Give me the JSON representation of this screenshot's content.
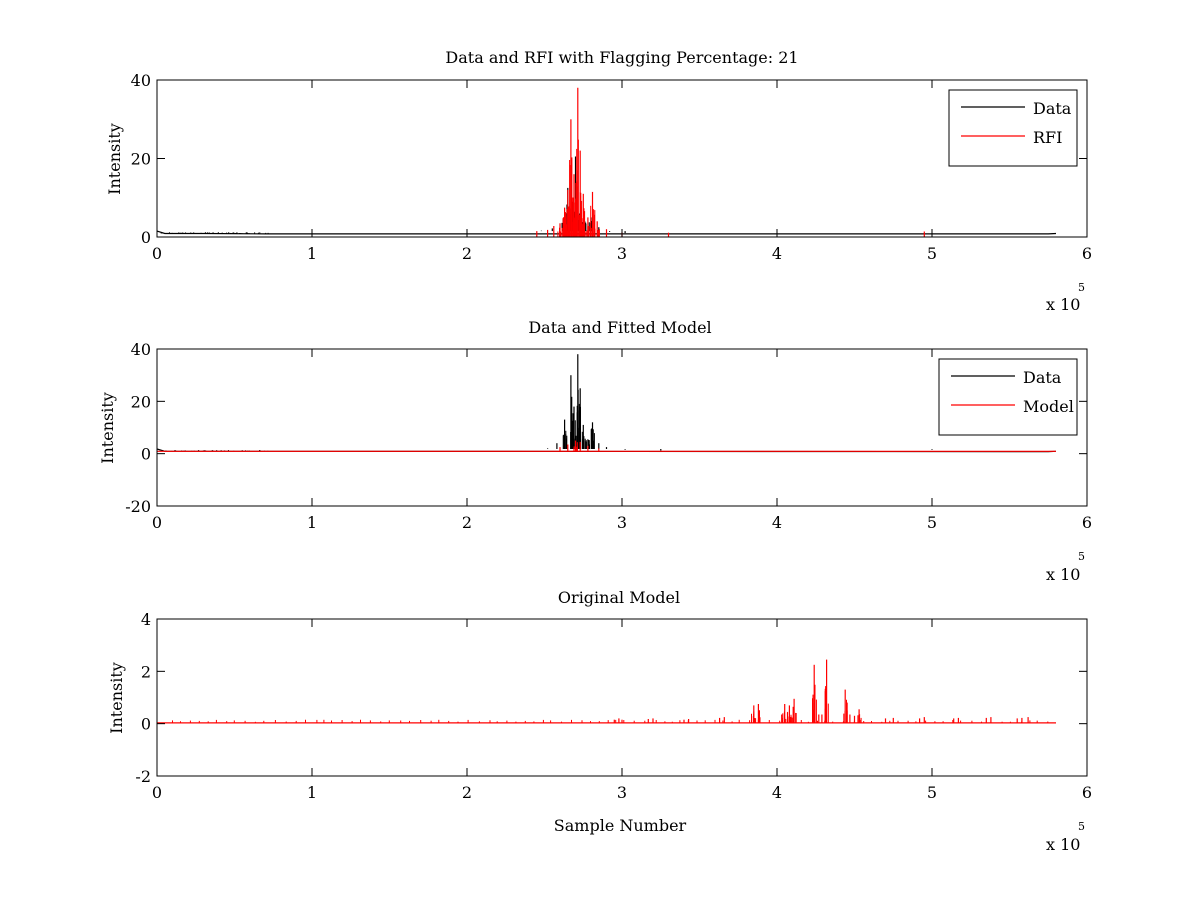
{
  "chart_data": [
    {
      "type": "line",
      "title": "Data and RFI with Flagging Percentage: 21",
      "xlabel": "",
      "ylabel": "Intensity",
      "xlim": [
        0,
        6
      ],
      "ylim": [
        0,
        40
      ],
      "x_multiplier": "x 10",
      "x_multiplier_exp": "5",
      "xticks": [
        "0",
        "1",
        "2",
        "3",
        "4",
        "5",
        "6"
      ],
      "yticks": [
        "0",
        "20",
        "40"
      ],
      "ytick_values": [
        0,
        20,
        40
      ],
      "legend": {
        "position": "top-right",
        "entries": [
          "Data",
          "RFI"
        ]
      },
      "series": [
        {
          "name": "Data",
          "color": "#000000",
          "baseline": [
            [
              0,
              1.5
            ],
            [
              0.05,
              0.9
            ],
            [
              0.3,
              0.9
            ],
            [
              0.7,
              0.8
            ],
            [
              2.5,
              0.8
            ],
            [
              5.75,
              0.8
            ],
            [
              5.8,
              0.9
            ]
          ],
          "spikes": [
            [
              2.48,
              1.6
            ],
            [
              2.55,
              2.2
            ],
            [
              2.62,
              4.5
            ],
            [
              2.65,
              12.5
            ],
            [
              2.68,
              9.0
            ],
            [
              2.7,
              20.5
            ],
            [
              2.73,
              6.5
            ],
            [
              2.76,
              4.0
            ],
            [
              2.8,
              5.0
            ],
            [
              2.85,
              2.5
            ],
            [
              2.92,
              1.3
            ],
            [
              3.02,
              1.0
            ]
          ]
        },
        {
          "name": "RFI",
          "color": "#ff0000",
          "spikes": [
            [
              2.45,
              1.5
            ],
            [
              2.52,
              1.8
            ],
            [
              2.56,
              2.8
            ],
            [
              2.6,
              3.5
            ],
            [
              2.63,
              7.5
            ],
            [
              2.65,
              12.0
            ],
            [
              2.67,
              30.0
            ],
            [
              2.69,
              16.0
            ],
            [
              2.715,
              38.0
            ],
            [
              2.73,
              22.0
            ],
            [
              2.75,
              11.0
            ],
            [
              2.78,
              5.0
            ],
            [
              2.81,
              11.5
            ],
            [
              2.84,
              4.0
            ],
            [
              2.9,
              2.0
            ],
            [
              3.0,
              1.2
            ],
            [
              3.3,
              1.1
            ],
            [
              4.95,
              1.4
            ]
          ]
        }
      ]
    },
    {
      "type": "line",
      "title": "Data and Fitted Model",
      "xlabel": "",
      "ylabel": "Intensity",
      "xlim": [
        0,
        6
      ],
      "ylim": [
        -20,
        40
      ],
      "x_multiplier": "x 10",
      "x_multiplier_exp": "5",
      "xticks": [
        "0",
        "1",
        "2",
        "3",
        "4",
        "5",
        "6"
      ],
      "yticks": [
        "-20",
        "0",
        "20",
        "40"
      ],
      "ytick_values": [
        -20,
        0,
        20,
        40
      ],
      "legend": {
        "position": "top-right",
        "entries": [
          "Data",
          "Model"
        ]
      },
      "series": [
        {
          "name": "Data",
          "color": "#000000",
          "baseline": [
            [
              0,
              1.8
            ],
            [
              0.05,
              0.9
            ],
            [
              0.7,
              0.9
            ],
            [
              5.75,
              0.8
            ],
            [
              5.8,
              0.9
            ]
          ],
          "spikes": [
            [
              2.45,
              1.8
            ],
            [
              2.52,
              2.0
            ],
            [
              2.58,
              4.0
            ],
            [
              2.63,
              13.0
            ],
            [
              2.67,
              30.0
            ],
            [
              2.69,
              18.0
            ],
            [
              2.715,
              38.0
            ],
            [
              2.73,
              25.0
            ],
            [
              2.75,
              11.0
            ],
            [
              2.78,
              5.5
            ],
            [
              2.81,
              12.0
            ],
            [
              2.85,
              4.0
            ],
            [
              2.9,
              2.5
            ],
            [
              3.02,
              1.5
            ],
            [
              3.25,
              1.2
            ],
            [
              5.0,
              1.5
            ]
          ]
        },
        {
          "name": "Model",
          "color": "#ff0000",
          "baseline": [
            [
              0,
              0.9
            ],
            [
              5.8,
              0.9
            ]
          ],
          "spikes": [
            [
              2.6,
              2.5
            ],
            [
              2.65,
              3.5
            ],
            [
              2.7,
              5.0
            ],
            [
              2.73,
              4.5
            ],
            [
              2.78,
              3.0
            ],
            [
              2.85,
              2.0
            ]
          ]
        }
      ]
    },
    {
      "type": "line",
      "title": "Original Model",
      "xlabel": "Sample Number",
      "ylabel": "Intensity",
      "xlim": [
        0,
        6
      ],
      "ylim": [
        -2,
        4
      ],
      "x_multiplier": "x 10",
      "x_multiplier_exp": "5",
      "xticks": [
        "0",
        "1",
        "2",
        "3",
        "4",
        "5",
        "6"
      ],
      "yticks": [
        "-2",
        "0",
        "2",
        "4"
      ],
      "ytick_values": [
        -2,
        0,
        2,
        4
      ],
      "series": [
        {
          "name": "",
          "color": "#ff0000",
          "baseline": [
            [
              0,
              0.03
            ],
            [
              5.8,
              0.03
            ]
          ],
          "spikes": [
            [
              2.95,
              0.15
            ],
            [
              2.98,
              0.2
            ],
            [
              3.0,
              0.15
            ],
            [
              3.17,
              0.18
            ],
            [
              3.2,
              0.2
            ],
            [
              3.4,
              0.15
            ],
            [
              3.43,
              0.18
            ],
            [
              3.63,
              0.22
            ],
            [
              3.66,
              0.25
            ],
            [
              3.85,
              0.7
            ],
            [
              3.88,
              0.75
            ],
            [
              4.03,
              0.35
            ],
            [
              4.05,
              0.75
            ],
            [
              4.08,
              0.7
            ],
            [
              4.11,
              0.95
            ],
            [
              4.24,
              2.25
            ],
            [
              4.27,
              0.35
            ],
            [
              4.29,
              0.35
            ],
            [
              4.32,
              2.45
            ],
            [
              4.44,
              1.3
            ],
            [
              4.47,
              0.35
            ],
            [
              4.5,
              0.3
            ],
            [
              4.53,
              0.55
            ],
            [
              4.7,
              0.2
            ],
            [
              4.75,
              0.22
            ],
            [
              4.92,
              0.2
            ],
            [
              4.95,
              0.25
            ],
            [
              5.14,
              0.2
            ],
            [
              5.17,
              0.22
            ],
            [
              5.35,
              0.22
            ],
            [
              5.38,
              0.25
            ],
            [
              5.55,
              0.2
            ],
            [
              5.58,
              0.22
            ],
            [
              5.62,
              0.25
            ]
          ],
          "minor_spike_range": [
            0.1,
            5.75
          ],
          "minor_spike_height": 0.08
        }
      ]
    }
  ]
}
